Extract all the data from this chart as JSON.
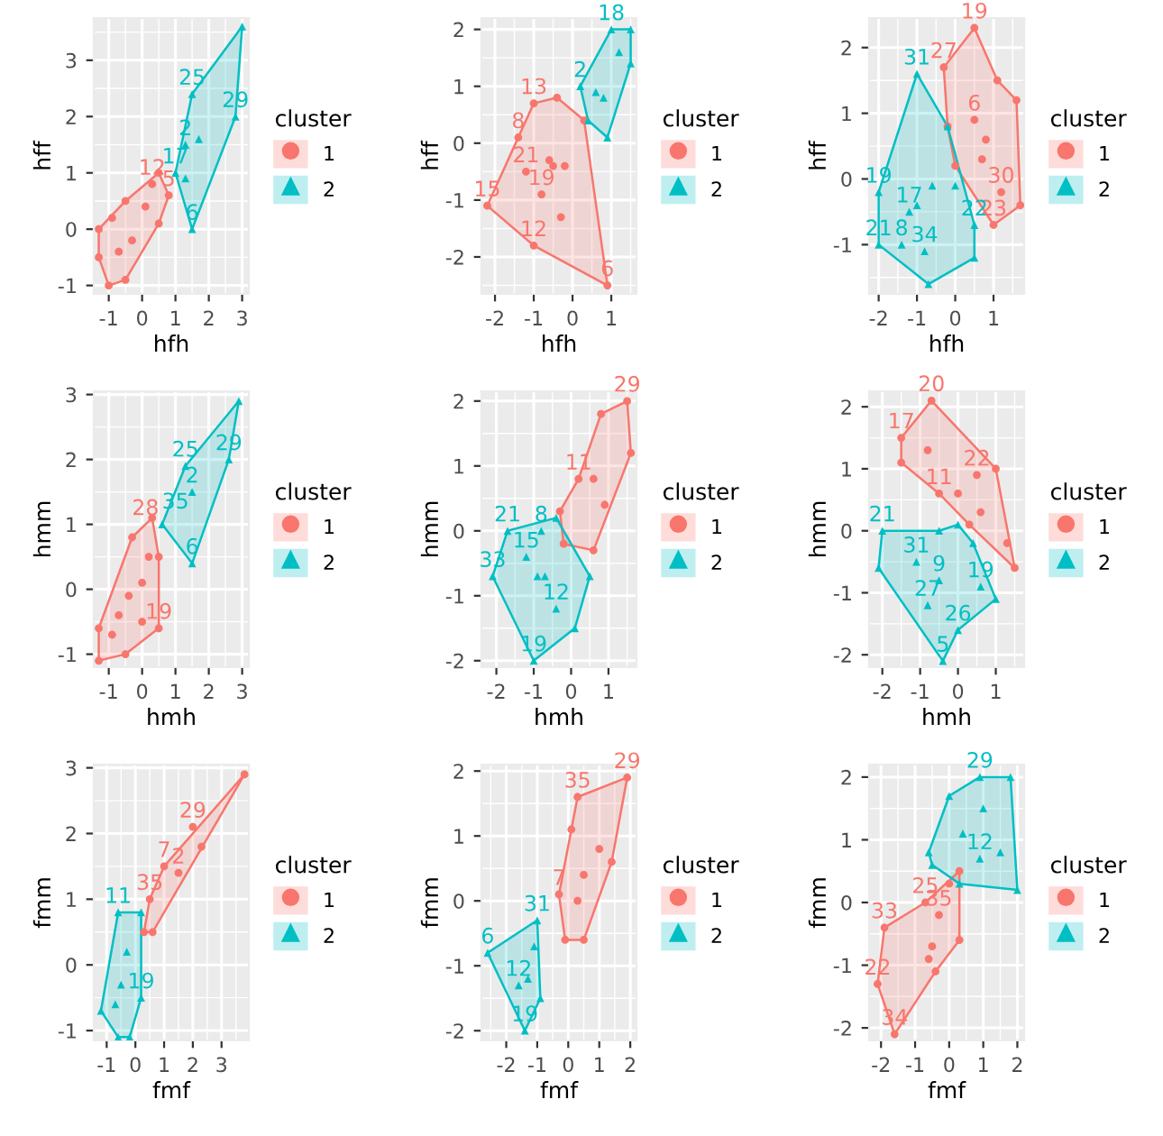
{
  "chart_data": [
    {
      "type": "scatter",
      "xlabel": "hfh",
      "ylabel": "hff",
      "legend_title": "cluster",
      "legend": "right",
      "grid": true,
      "xlim": [
        -1.45,
        3.2
      ],
      "ylim": [
        -1.15,
        3.75
      ],
      "xticks": [
        -1,
        0,
        1,
        2,
        3
      ],
      "yticks": [
        -1,
        0,
        1,
        2,
        3
      ],
      "annotations": [
        {
          "text": "5",
          "x": 0.8,
          "y": 0.6
        },
        {
          "text": "12",
          "x": 0.3,
          "y": 0.8
        },
        {
          "text": "6",
          "x": 1.5,
          "y": 0
        },
        {
          "text": "29",
          "x": 2.8,
          "y": 2.0
        },
        {
          "text": "25",
          "x": 1.5,
          "y": 2.4
        },
        {
          "text": "17",
          "x": 1.0,
          "y": 1.0
        },
        {
          "text": "2",
          "x": 1.3,
          "y": 1.5
        }
      ],
      "series": [
        {
          "type": "area",
          "color": "#f8766d",
          "x": [
            -1,
            -0.5,
            0.5,
            0.8,
            0.5,
            -0.5,
            -1.3,
            -1.3,
            -1
          ],
          "values": [
            -1,
            -0.9,
            0.1,
            0.6,
            1.0,
            0.5,
            0,
            -0.5,
            -1
          ]
        },
        {
          "type": "area",
          "color": "#00bfc4",
          "x": [
            1.5,
            2.8,
            3.0,
            1.5,
            1.0,
            1.5
          ],
          "values": [
            0,
            2.0,
            3.6,
            2.4,
            1.0,
            0
          ]
        },
        {
          "name": "1",
          "color": "#f8766d",
          "marker": "circle",
          "x": [
            -1,
            -0.5,
            0.5,
            0.8,
            0.5,
            -0.5,
            -1.3,
            -1.3,
            -0.3,
            -0.7,
            0.1,
            -0.9,
            0.3
          ],
          "values": [
            -1,
            -0.9,
            0.1,
            0.6,
            1.0,
            0.5,
            0,
            -0.5,
            -0.2,
            -0.4,
            0.4,
            0.2,
            0.8
          ]
        },
        {
          "name": "2",
          "color": "#00bfc4",
          "marker": "triangle",
          "x": [
            1.5,
            2.8,
            3.0,
            1.5,
            1.0,
            1.3,
            1.3,
            1.7
          ],
          "values": [
            0,
            2.0,
            3.6,
            2.4,
            1.0,
            1.5,
            0.9,
            1.6
          ]
        }
      ]
    },
    {
      "type": "scatter",
      "xlabel": "hfh",
      "ylabel": "hff",
      "legend_title": "cluster",
      "legend": "right",
      "grid": true,
      "xlim": [
        -2.35,
        1.65
      ],
      "ylim": [
        -2.65,
        2.2
      ],
      "xticks": [
        -2,
        -1,
        0,
        1
      ],
      "yticks": [
        -2,
        -1,
        0,
        1,
        2
      ],
      "annotations": [
        {
          "text": "15",
          "x": -2.2,
          "y": -1.1
        },
        {
          "text": "13",
          "x": -1,
          "y": 0.7
        },
        {
          "text": "6",
          "x": 0.9,
          "y": -2.5
        },
        {
          "text": "12",
          "x": -1,
          "y": -1.8
        },
        {
          "text": "21",
          "x": -1.2,
          "y": -0.5
        },
        {
          "text": "8",
          "x": -1.4,
          "y": 0.1
        },
        {
          "text": "19",
          "x": -0.8,
          "y": -0.9
        },
        {
          "text": "2",
          "x": 0.2,
          "y": 1.0
        },
        {
          "text": "18",
          "x": 1.0,
          "y": 2.0
        }
      ],
      "series": [
        {
          "type": "area",
          "color": "#f8766d",
          "x": [
            -2.2,
            -1,
            -0.4,
            0.3,
            0.9,
            -1,
            -2.2
          ],
          "values": [
            -1.1,
            0.7,
            0.8,
            0.4,
            -2.5,
            -1.8,
            -1.1
          ]
        },
        {
          "type": "area",
          "color": "#00bfc4",
          "x": [
            0.4,
            0.2,
            1.0,
            1.5,
            1.5,
            0.9,
            0.4
          ],
          "values": [
            0.4,
            1.0,
            2.0,
            2.0,
            1.4,
            0.1,
            0.4
          ]
        },
        {
          "name": "1",
          "color": "#f8766d",
          "marker": "circle",
          "x": [
            -2.2,
            -1,
            -0.4,
            0.3,
            0.9,
            -1,
            -1.2,
            -0.5,
            -0.3,
            -1.4,
            -0.8,
            -0.2,
            -0.6
          ],
          "values": [
            -1.1,
            0.7,
            0.8,
            0.4,
            -2.5,
            -1.8,
            -0.5,
            -0.4,
            -1.3,
            0.1,
            -0.9,
            -0.4,
            -0.3
          ]
        },
        {
          "name": "2",
          "color": "#00bfc4",
          "marker": "triangle",
          "x": [
            0.4,
            0.2,
            1.0,
            1.5,
            1.5,
            0.9,
            0.8,
            1.2,
            0.6
          ],
          "values": [
            0.4,
            1.0,
            2.0,
            2.0,
            1.4,
            0.1,
            0.8,
            1.6,
            0.9
          ]
        }
      ]
    },
    {
      "type": "scatter",
      "xlabel": "hfh",
      "ylabel": "hff",
      "legend_title": "cluster",
      "legend": "right",
      "grid": true,
      "xlim": [
        -2.25,
        1.8
      ],
      "ylim": [
        -1.75,
        2.45
      ],
      "xticks": [
        -2,
        -1,
        0,
        1
      ],
      "yticks": [
        -1,
        0,
        1,
        2
      ],
      "annotations": [
        {
          "text": "27",
          "x": -0.3,
          "y": 1.7
        },
        {
          "text": "19",
          "x": 0.5,
          "y": 2.3
        },
        {
          "text": "23",
          "x": 1.0,
          "y": -0.7
        },
        {
          "text": "6",
          "x": 0.5,
          "y": 0.9
        },
        {
          "text": "30",
          "x": 1.2,
          "y": -0.2
        },
        {
          "text": "31",
          "x": -1.0,
          "y": 1.6
        },
        {
          "text": "22",
          "x": 0.5,
          "y": -0.7
        },
        {
          "text": "21",
          "x": -2.0,
          "y": -1.0
        },
        {
          "text": "19",
          "x": -2.0,
          "y": -0.2
        },
        {
          "text": "17",
          "x": -1.2,
          "y": -0.5
        },
        {
          "text": "34",
          "x": -0.8,
          "y": -1.1
        },
        {
          "text": "8",
          "x": -1.4,
          "y": -1.0
        }
      ],
      "series": [
        {
          "type": "area",
          "color": "#f8766d",
          "x": [
            -0.3,
            0.5,
            1.1,
            1.6,
            1.7,
            1.0,
            0,
            -0.2,
            -0.3
          ],
          "values": [
            1.7,
            2.3,
            1.5,
            1.2,
            -0.4,
            -0.7,
            0.2,
            0.8,
            1.7
          ]
        },
        {
          "type": "area",
          "color": "#00bfc4",
          "x": [
            -1.0,
            -0.2,
            0.5,
            0.5,
            -0.7,
            -2.0,
            -2.0,
            -1.0
          ],
          "values": [
            1.6,
            0.8,
            -0.7,
            -1.2,
            -1.6,
            -1.0,
            -0.2,
            1.6
          ]
        },
        {
          "name": "1",
          "color": "#f8766d",
          "marker": "circle",
          "x": [
            -0.3,
            0.5,
            1.1,
            1.6,
            1.7,
            1.0,
            0,
            -0.2,
            0.5,
            0.7,
            1.2,
            0.8
          ],
          "values": [
            1.7,
            2.3,
            1.5,
            1.2,
            -0.4,
            -0.7,
            0.2,
            0.8,
            0.9,
            0.3,
            -0.2,
            0.6
          ]
        },
        {
          "name": "2",
          "color": "#00bfc4",
          "marker": "triangle",
          "x": [
            -1.0,
            -0.2,
            0.5,
            0.5,
            -0.7,
            -2.0,
            -2.0,
            -1.0,
            -1.2,
            -0.6,
            0,
            -0.8,
            -1.4
          ],
          "values": [
            1.6,
            0.8,
            -0.7,
            -1.2,
            -1.6,
            -1.0,
            -0.2,
            -0.4,
            -0.5,
            -0.1,
            -0.1,
            -1.1,
            -1.0
          ]
        }
      ]
    },
    {
      "type": "scatter",
      "xlabel": "hmh",
      "ylabel": "hmm",
      "legend_title": "cluster",
      "legend": "right",
      "grid": true,
      "xlim": [
        -1.45,
        3.2
      ],
      "ylim": [
        -1.2,
        3.05
      ],
      "xticks": [
        -1,
        0,
        1,
        2,
        3
      ],
      "yticks": [
        -1,
        0,
        1,
        2,
        3
      ],
      "annotations": [
        {
          "text": "19",
          "x": 0.5,
          "y": -0.6
        },
        {
          "text": "28",
          "x": 0.1,
          "y": 1.0
        },
        {
          "text": "35",
          "x": 1.0,
          "y": 1.1
        },
        {
          "text": "25",
          "x": 1.3,
          "y": 1.9
        },
        {
          "text": "29",
          "x": 2.6,
          "y": 2.0
        },
        {
          "text": "6",
          "x": 1.5,
          "y": 0.4
        },
        {
          "text": "2",
          "x": 1.5,
          "y": 1.5
        }
      ],
      "series": [
        {
          "type": "area",
          "color": "#f8766d",
          "x": [
            -1.3,
            -0.5,
            0.5,
            0.5,
            0.3,
            -0.3,
            -1.3,
            -1.3
          ],
          "values": [
            -1.1,
            -1.0,
            -0.6,
            0.5,
            1.1,
            0.8,
            -0.6,
            -1.1
          ]
        },
        {
          "type": "area",
          "color": "#00bfc4",
          "x": [
            0.6,
            1.3,
            2.9,
            2.6,
            1.5,
            0.6
          ],
          "values": [
            1.0,
            1.9,
            2.9,
            2.0,
            0.4,
            1.0
          ]
        },
        {
          "name": "1",
          "color": "#f8766d",
          "marker": "circle",
          "x": [
            -1.3,
            -0.5,
            0.5,
            0.5,
            0.3,
            -0.3,
            -1.3,
            -0.7,
            0,
            -0.4,
            0.2,
            -0.9,
            0
          ],
          "values": [
            -1.1,
            -1.0,
            -0.6,
            0.5,
            1.1,
            0.8,
            -0.6,
            -0.4,
            0.1,
            -0.1,
            0.5,
            -0.7,
            -0.5
          ]
        },
        {
          "name": "2",
          "color": "#00bfc4",
          "marker": "triangle",
          "x": [
            0.6,
            1.3,
            2.9,
            2.6,
            1.5,
            1.5
          ],
          "values": [
            1.0,
            1.9,
            2.9,
            2.0,
            0.4,
            1.5
          ]
        }
      ]
    },
    {
      "type": "scatter",
      "xlabel": "hmh",
      "ylabel": "hmm",
      "legend_title": "cluster",
      "legend": "right",
      "grid": true,
      "xlim": [
        -2.4,
        1.75
      ],
      "ylim": [
        -2.1,
        2.15
      ],
      "xticks": [
        -2,
        -1,
        0,
        1
      ],
      "yticks": [
        -2,
        -1,
        0,
        1,
        2
      ],
      "annotations": [
        {
          "text": "11",
          "x": 0.2,
          "y": 0.8
        },
        {
          "text": "29",
          "x": 1.5,
          "y": 2.0
        },
        {
          "text": "21",
          "x": -1.7,
          "y": 0
        },
        {
          "text": "19",
          "x": -1.0,
          "y": -2.0
        },
        {
          "text": "33",
          "x": -2.1,
          "y": -0.7
        },
        {
          "text": "12",
          "x": -0.4,
          "y": -1.2
        },
        {
          "text": "8",
          "x": -0.8,
          "y": 0.0
        },
        {
          "text": "15",
          "x": -1.2,
          "y": -0.4
        }
      ],
      "series": [
        {
          "type": "area",
          "color": "#f8766d",
          "x": [
            -0.3,
            0.2,
            0.8,
            1.5,
            1.6,
            0.6,
            -0.2,
            -0.3
          ],
          "values": [
            0.3,
            0.8,
            1.8,
            2.0,
            1.2,
            -0.3,
            -0.2,
            0.3
          ]
        },
        {
          "type": "area",
          "color": "#00bfc4",
          "x": [
            -1.7,
            -0.4,
            0.5,
            0.1,
            -1.0,
            -2.1,
            -1.7
          ],
          "values": [
            0,
            0.2,
            -0.7,
            -1.5,
            -2.0,
            -0.7,
            0
          ]
        },
        {
          "name": "1",
          "color": "#f8766d",
          "marker": "circle",
          "x": [
            -0.3,
            0.2,
            0.8,
            1.5,
            1.6,
            0.6,
            -0.2,
            0.6,
            0.9
          ],
          "values": [
            0.3,
            0.8,
            1.8,
            2.0,
            1.2,
            -0.3,
            -0.2,
            0.8,
            0.4
          ]
        },
        {
          "name": "2",
          "color": "#00bfc4",
          "marker": "triangle",
          "x": [
            -1.7,
            -0.4,
            0.5,
            0.1,
            -1.0,
            -2.1,
            -0.7,
            -0.4,
            -0.8,
            -1.2,
            -0.9
          ],
          "values": [
            0,
            0.2,
            -0.7,
            -1.5,
            -2.0,
            -0.7,
            -0.7,
            -1.2,
            0.0,
            -0.4,
            -0.7
          ]
        }
      ]
    },
    {
      "type": "scatter",
      "xlabel": "hmh",
      "ylabel": "hmm",
      "legend_title": "cluster",
      "legend": "right",
      "grid": true,
      "xlim": [
        -2.35,
        1.75
      ],
      "ylim": [
        -2.2,
        2.25
      ],
      "xticks": [
        -2,
        -1,
        0,
        1
      ],
      "yticks": [
        -2,
        -1,
        0,
        1,
        2
      ],
      "annotations": [
        {
          "text": "17",
          "x": -1.5,
          "y": 1.5
        },
        {
          "text": "20",
          "x": -0.7,
          "y": 2.1
        },
        {
          "text": "11",
          "x": -0.5,
          "y": 0.6
        },
        {
          "text": "22",
          "x": 0.5,
          "y": 0.9
        },
        {
          "text": "21",
          "x": -2.0,
          "y": 0
        },
        {
          "text": "26",
          "x": 0,
          "y": -1.6
        },
        {
          "text": "5",
          "x": -0.4,
          "y": -2.1
        },
        {
          "text": "31",
          "x": -1.1,
          "y": -0.5
        },
        {
          "text": "27",
          "x": -0.8,
          "y": -1.2
        },
        {
          "text": "9",
          "x": -0.5,
          "y": -0.8
        },
        {
          "text": "19",
          "x": 0.6,
          "y": -0.9
        }
      ],
      "series": [
        {
          "type": "area",
          "color": "#f8766d",
          "x": [
            -1.5,
            -0.7,
            1.0,
            1.5,
            0.3,
            -0.5,
            -1.5,
            -1.5
          ],
          "values": [
            1.5,
            2.1,
            1.0,
            -0.6,
            0.1,
            0.6,
            1.1,
            1.5
          ]
        },
        {
          "type": "area",
          "color": "#00bfc4",
          "x": [
            -2.0,
            -0.5,
            0,
            0.4,
            1.0,
            0,
            -0.4,
            -2.1,
            -2.0
          ],
          "values": [
            0,
            0,
            0.1,
            -0.2,
            -1.1,
            -1.6,
            -2.1,
            -0.6,
            0
          ]
        },
        {
          "name": "1",
          "color": "#f8766d",
          "marker": "circle",
          "x": [
            -1.5,
            -0.7,
            1.0,
            1.5,
            0.3,
            -0.5,
            -1.5,
            -0.8,
            0,
            0.5,
            0.6,
            1.3
          ],
          "values": [
            1.5,
            2.1,
            1.0,
            -0.6,
            0.1,
            0.6,
            1.1,
            1.3,
            0.6,
            0.9,
            0.3,
            -0.2
          ]
        },
        {
          "name": "2",
          "color": "#00bfc4",
          "marker": "triangle",
          "x": [
            -2.0,
            -0.5,
            0,
            0.4,
            1.0,
            0,
            -0.4,
            -2.1,
            -1.1,
            -0.8,
            -0.5,
            0.6
          ],
          "values": [
            0,
            0,
            0.1,
            -0.2,
            -1.1,
            -1.6,
            -2.1,
            -0.6,
            -0.5,
            -1.2,
            -0.8,
            -0.9
          ]
        }
      ]
    },
    {
      "type": "scatter",
      "xlabel": "fmf",
      "ylabel": "fmm",
      "legend_title": "cluster",
      "legend": "right",
      "grid": true,
      "xlim": [
        -1.45,
        3.95
      ],
      "ylim": [
        -1.15,
        3.05
      ],
      "xticks": [
        -1,
        0,
        1,
        2,
        3
      ],
      "yticks": [
        -1,
        0,
        1,
        2,
        3
      ],
      "annotations": [
        {
          "text": "35",
          "x": 0.5,
          "y": 1.0
        },
        {
          "text": "7",
          "x": 1.0,
          "y": 1.5
        },
        {
          "text": "29",
          "x": 2.0,
          "y": 2.1
        },
        {
          "text": "2",
          "x": 1.5,
          "y": 1.4
        },
        {
          "text": "11",
          "x": -0.6,
          "y": 0.8
        },
        {
          "text": "19",
          "x": 0.2,
          "y": -0.5
        }
      ],
      "series": [
        {
          "type": "area",
          "color": "#f8766d",
          "x": [
            0.3,
            0.5,
            1.0,
            3.8,
            0.6,
            0.3
          ],
          "values": [
            0.5,
            1.0,
            1.5,
            2.9,
            0.5,
            0.5
          ]
        },
        {
          "type": "area",
          "color": "#00bfc4",
          "x": [
            -1.2,
            -0.6,
            0.2,
            0.2,
            -0.2,
            -0.6,
            -1.2
          ],
          "values": [
            -0.7,
            0.8,
            0.8,
            -0.5,
            -1.1,
            -1.1,
            -0.7
          ]
        },
        {
          "name": "1",
          "color": "#f8766d",
          "marker": "circle",
          "x": [
            0.3,
            0.5,
            1.0,
            3.8,
            0.6,
            2.0,
            2.3,
            1.5
          ],
          "values": [
            0.5,
            1.0,
            1.5,
            2.9,
            0.5,
            2.1,
            1.8,
            1.4
          ]
        },
        {
          "name": "2",
          "color": "#00bfc4",
          "marker": "triangle",
          "x": [
            -1.2,
            -0.6,
            0.2,
            0.2,
            -0.2,
            -0.6,
            -0.5,
            -0.3,
            -0.7
          ],
          "values": [
            -0.7,
            0.8,
            0.8,
            -0.5,
            -1.1,
            -1.1,
            -0.3,
            0.2,
            -0.6
          ]
        }
      ]
    },
    {
      "type": "scatter",
      "xlabel": "fmf",
      "ylabel": "fmm",
      "legend_title": "cluster",
      "legend": "right",
      "grid": true,
      "xlim": [
        -2.8,
        2.2
      ],
      "ylim": [
        -2.15,
        2.1
      ],
      "xticks": [
        -2,
        -1,
        0,
        1,
        2
      ],
      "yticks": [
        -2,
        -1,
        0,
        1,
        2
      ],
      "annotations": [
        {
          "text": "7",
          "x": -0.3,
          "y": 0.1
        },
        {
          "text": "35",
          "x": 0.3,
          "y": 1.6
        },
        {
          "text": "29",
          "x": 1.9,
          "y": 1.9
        },
        {
          "text": "6",
          "x": -2.6,
          "y": -0.8
        },
        {
          "text": "31",
          "x": -1.0,
          "y": -0.3
        },
        {
          "text": "19",
          "x": -1.4,
          "y": -2.0
        },
        {
          "text": "12",
          "x": -1.6,
          "y": -1.3
        }
      ],
      "series": [
        {
          "type": "area",
          "color": "#f8766d",
          "x": [
            -0.3,
            0.3,
            1.9,
            1.4,
            0.5,
            -0.1,
            -0.3
          ],
          "values": [
            0.1,
            1.6,
            1.9,
            0.6,
            -0.6,
            -0.6,
            0.1
          ]
        },
        {
          "type": "area",
          "color": "#00bfc4",
          "x": [
            -2.6,
            -1.0,
            -0.9,
            -1.4,
            -2.6
          ],
          "values": [
            -0.8,
            -0.3,
            -1.5,
            -2.0,
            -0.8
          ]
        },
        {
          "name": "1",
          "color": "#f8766d",
          "marker": "circle",
          "x": [
            -0.3,
            0.3,
            1.9,
            1.4,
            0.5,
            -0.1,
            0.1,
            0.5,
            1.0,
            0.3
          ],
          "values": [
            0.1,
            1.6,
            1.9,
            0.6,
            -0.6,
            -0.6,
            1.1,
            0.4,
            0.8,
            0.0
          ]
        },
        {
          "name": "2",
          "color": "#00bfc4",
          "marker": "triangle",
          "x": [
            -2.6,
            -1.0,
            -0.9,
            -1.4,
            -1.3,
            -1.1,
            -1.6
          ],
          "values": [
            -0.8,
            -0.3,
            -1.5,
            -2.0,
            -1.2,
            -0.7,
            -1.3
          ]
        }
      ]
    },
    {
      "type": "scatter",
      "xlabel": "fmf",
      "ylabel": "fmm",
      "legend_title": "cluster",
      "legend": "right",
      "grid": true,
      "xlim": [
        -2.35,
        2.2
      ],
      "ylim": [
        -2.2,
        2.2
      ],
      "xticks": [
        -2,
        -1,
        0,
        1,
        2
      ],
      "yticks": [
        -2,
        -1,
        0,
        1,
        2
      ],
      "annotations": [
        {
          "text": "22",
          "x": -2.1,
          "y": -1.3
        },
        {
          "text": "34",
          "x": -1.6,
          "y": -2.1
        },
        {
          "text": "25",
          "x": -0.7,
          "y": 0
        },
        {
          "text": "33",
          "x": -1.9,
          "y": -0.4
        },
        {
          "text": "35",
          "x": -0.3,
          "y": -0.2
        },
        {
          "text": "29",
          "x": 0.9,
          "y": 2.0
        },
        {
          "text": "12",
          "x": 0.9,
          "y": 0.7
        }
      ],
      "series": [
        {
          "type": "area",
          "color": "#f8766d",
          "x": [
            -2.1,
            -1.6,
            -0.4,
            0.3,
            0.3,
            -0.7,
            -1.9,
            -2.1
          ],
          "values": [
            -1.3,
            -2.1,
            -1.1,
            -0.6,
            0.5,
            0,
            -0.4,
            -1.3
          ]
        },
        {
          "type": "area",
          "color": "#00bfc4",
          "x": [
            -0.6,
            0,
            0.9,
            1.8,
            2.0,
            0.3,
            -0.5,
            -0.6
          ],
          "values": [
            0.8,
            1.7,
            2.0,
            2.0,
            0.2,
            0.3,
            0.6,
            0.8
          ]
        },
        {
          "name": "1",
          "color": "#f8766d",
          "marker": "circle",
          "x": [
            -2.1,
            -1.6,
            -0.4,
            0.3,
            0.3,
            -0.7,
            -1.9,
            -0.5,
            -0.3,
            0,
            -0.6
          ],
          "values": [
            -1.3,
            -2.1,
            -1.1,
            -0.6,
            0.5,
            0,
            -0.4,
            -0.7,
            -0.2,
            0.3,
            -0.9
          ]
        },
        {
          "name": "2",
          "color": "#00bfc4",
          "marker": "triangle",
          "x": [
            -0.6,
            0,
            0.9,
            1.8,
            2.0,
            0.3,
            -0.5,
            0.4,
            1.0,
            1.5,
            0.9
          ],
          "values": [
            0.8,
            1.7,
            2.0,
            2.0,
            0.2,
            0.3,
            0.6,
            1.1,
            1.5,
            0.8,
            0.7
          ]
        }
      ]
    }
  ]
}
